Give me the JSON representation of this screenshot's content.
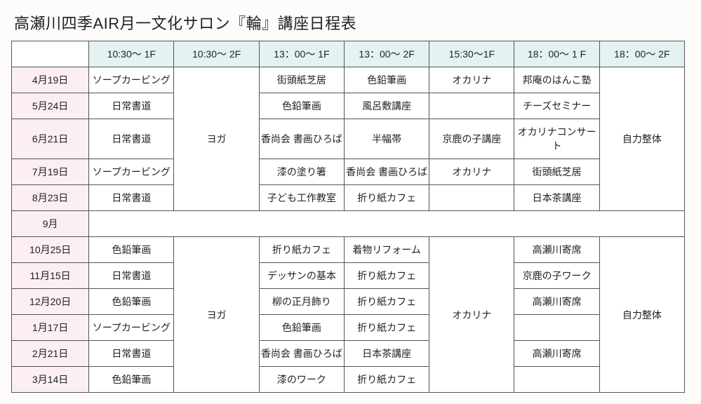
{
  "title": "高瀬川四季AIR月一文化サロン『輪』講座日程表",
  "headers": {
    "times": [
      "10:30～ 1F",
      "10:30～ 2F",
      "13：00～ 1F",
      "13：00～ 2F",
      "15:30～1F",
      "18：00～ 1 F",
      "18：00～ 2F"
    ]
  },
  "block1": {
    "yoga": "ヨガ",
    "jiriki": "自力整体",
    "rows": [
      {
        "date": "4月19日",
        "c1": "ソープカービング",
        "c3": "街頭紙芝居",
        "c4": "色鉛筆画",
        "c5": "オカリナ",
        "c6": "邦庵のはんこ塾"
      },
      {
        "date": "5月24日",
        "c1": "日常書道",
        "c3": "色鉛筆画",
        "c4": "風呂敷講座",
        "c5": "",
        "c6": "チーズセミナー"
      },
      {
        "date": "6月21日",
        "c1": "日常書道",
        "c3": "香尚会 書画ひろば",
        "c4": "半幅帯",
        "c5": "京鹿の子講座",
        "c6": "オカリナコンサート"
      },
      {
        "date": "7月19日",
        "c1": "ソープカービング",
        "c3": "漆の塗り箸",
        "c4": "香尚会 書画ひろば",
        "c5": "オカリナ",
        "c6": "街頭紙芝居"
      },
      {
        "date": "8月23日",
        "c1": "日常書道",
        "c3": "子ども工作教室",
        "c4": "折り紙カフェ",
        "c5": "",
        "c6": "日本茶講座"
      }
    ]
  },
  "september": {
    "date": "9月"
  },
  "block2": {
    "yoga": "ヨガ",
    "jiriki": "自力整体",
    "ocarina": "オカリナ",
    "rows": [
      {
        "date": "10月25日",
        "c1": "色鉛筆画",
        "c3": "折り紙カフェ",
        "c4": "着物リフォーム",
        "c6": "高瀬川寄席"
      },
      {
        "date": "11月15日",
        "c1": "日常書道",
        "c3": "デッサンの基本",
        "c4": "折り紙カフェ",
        "c6": "京鹿の子ワーク"
      },
      {
        "date": "12月20日",
        "c1": "色鉛筆画",
        "c3": "柳の正月飾り",
        "c4": "折り紙カフェ",
        "c6": "高瀬川寄席"
      },
      {
        "date": "1月17日",
        "c1": "ソープカービング",
        "c3": "色鉛筆画",
        "c4": "折り紙カフェ",
        "c6": ""
      },
      {
        "date": "2月21日",
        "c1": "日常書道",
        "c3": "香尚会 書画ひろば",
        "c4": "日本茶講座",
        "c6": "高瀬川寄席"
      },
      {
        "date": "3月14日",
        "c1": "色鉛筆画",
        "c3": "漆のワーク",
        "c4": "折り紙カフェ",
        "c6": ""
      }
    ]
  },
  "colors": {
    "header_bg": "#e4f2f2",
    "date_bg": "#fbeef4",
    "border": "#555555",
    "page_bg": "#fdfcfb"
  }
}
